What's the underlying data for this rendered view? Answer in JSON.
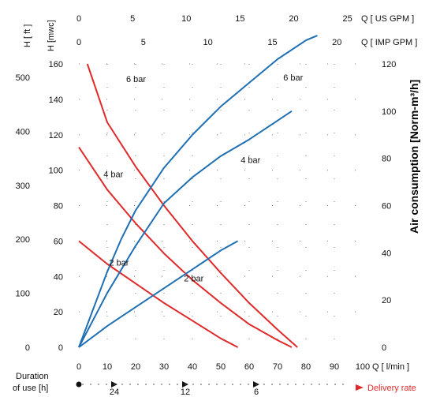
{
  "chart_data": {
    "type": "line",
    "axes": {
      "x_bottom": {
        "label": "Q [ l/min ]",
        "range": [
          0,
          100
        ],
        "ticks": [
          "0",
          "10",
          "20",
          "30",
          "40",
          "50",
          "60",
          "70",
          "80",
          "90",
          "100"
        ]
      },
      "x_top_usgpm": {
        "label": "Q [ US GPM ]",
        "ticks": [
          "0",
          "5",
          "10",
          "15",
          "20",
          "25"
        ]
      },
      "x_top_impgpm": {
        "label": "Q [ IMP GPM ]",
        "ticks": [
          "0",
          "5",
          "10",
          "15",
          "20"
        ]
      },
      "y_left_mwc": {
        "label": "H [mwc]",
        "range": [
          0,
          160
        ],
        "ticks": [
          "0",
          "20",
          "40",
          "60",
          "80",
          "100",
          "120",
          "140",
          "160"
        ]
      },
      "y_left_ft": {
        "label": "H [ ft ]",
        "ticks": [
          "0",
          "100",
          "200",
          "300",
          "400",
          "500"
        ]
      },
      "y_right": {
        "label": "Air consumption [Norm-m³/h]",
        "range": [
          0,
          120
        ],
        "ticks": [
          "0",
          "20",
          "40",
          "60",
          "80",
          "100",
          "120"
        ]
      }
    },
    "duration": {
      "label_line1": "Duration",
      "label_line2": "of use [h]",
      "marks": [
        "24",
        "12",
        "6"
      ]
    },
    "delivery_rate_label": "Delivery rate",
    "head_series": [
      {
        "name": "6 bar",
        "x": [
          3,
          10,
          20,
          30,
          40,
          50,
          60,
          70,
          77
        ],
        "y": [
          160,
          127,
          102,
          80,
          60,
          42,
          25,
          10,
          0
        ]
      },
      {
        "name": "4 bar",
        "x": [
          0,
          10,
          20,
          30,
          40,
          50,
          60,
          70,
          75
        ],
        "y": [
          113,
          89,
          70,
          53,
          38,
          25,
          13,
          4,
          0
        ]
      },
      {
        "name": "2 bar",
        "x": [
          0,
          10,
          20,
          30,
          40,
          50,
          56
        ],
        "y": [
          60,
          47,
          36,
          25,
          15,
          5,
          0
        ]
      }
    ],
    "air_series": [
      {
        "name": "6 bar",
        "x": [
          0,
          5,
          10,
          15,
          20,
          30,
          40,
          50,
          60,
          70,
          80,
          84
        ],
        "y": [
          0,
          16,
          32,
          46,
          58,
          76,
          90,
          102,
          112,
          122,
          130,
          132
        ]
      },
      {
        "name": "4 bar",
        "x": [
          0,
          10,
          20,
          30,
          40,
          50,
          60,
          70,
          75
        ],
        "y": [
          0,
          23,
          43,
          61,
          72,
          81,
          88,
          96,
          100
        ]
      },
      {
        "name": "2 bar",
        "x": [
          0,
          10,
          20,
          30,
          40,
          50,
          56
        ],
        "y": [
          0,
          9,
          17,
          25,
          33,
          41,
          45
        ]
      }
    ],
    "colors": {
      "head": "#e02a2a",
      "air": "#1f6fb4",
      "air_label": "#2b6cb8",
      "delivery": "#e02a2a",
      "text": "#111111"
    }
  }
}
